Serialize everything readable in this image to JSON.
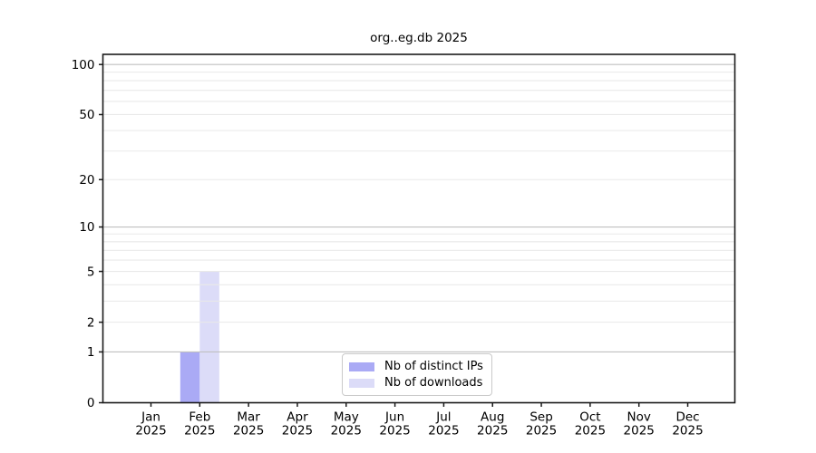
{
  "chart_data": {
    "type": "bar",
    "title": "org..eg.db 2025",
    "x_categories": [
      {
        "month": "Jan",
        "year": "2025"
      },
      {
        "month": "Feb",
        "year": "2025"
      },
      {
        "month": "Mar",
        "year": "2025"
      },
      {
        "month": "Apr",
        "year": "2025"
      },
      {
        "month": "May",
        "year": "2025"
      },
      {
        "month": "Jun",
        "year": "2025"
      },
      {
        "month": "Jul",
        "year": "2025"
      },
      {
        "month": "Aug",
        "year": "2025"
      },
      {
        "month": "Sep",
        "year": "2025"
      },
      {
        "month": "Oct",
        "year": "2025"
      },
      {
        "month": "Nov",
        "year": "2025"
      },
      {
        "month": "Dec",
        "year": "2025"
      }
    ],
    "series": [
      {
        "name": "Nb of distinct IPs",
        "color": "#aaaaf5",
        "values": [
          0,
          1,
          0,
          0,
          0,
          0,
          0,
          0,
          0,
          0,
          0,
          0
        ]
      },
      {
        "name": "Nb of downloads",
        "color": "#dcdcf8",
        "values": [
          0,
          5,
          0,
          0,
          0,
          0,
          0,
          0,
          0,
          0,
          0,
          0
        ]
      }
    ],
    "y_axis": {
      "scale": "log10(1+x)",
      "tick_values": [
        0,
        1,
        2,
        5,
        10,
        20,
        50,
        100
      ],
      "ylim": [
        0,
        115
      ],
      "grid_major": [
        1,
        10,
        100
      ],
      "grid_minor": [
        2,
        3,
        4,
        5,
        6,
        7,
        8,
        9,
        20,
        30,
        40,
        50,
        60,
        70,
        80,
        90
      ]
    },
    "legend": {
      "position": "lower-center-inside"
    },
    "colors": {
      "grid_major": "#c0c0c0",
      "grid_minor": "#e9e9e9",
      "axis": "#1a1a1a",
      "text": "#000000"
    }
  }
}
